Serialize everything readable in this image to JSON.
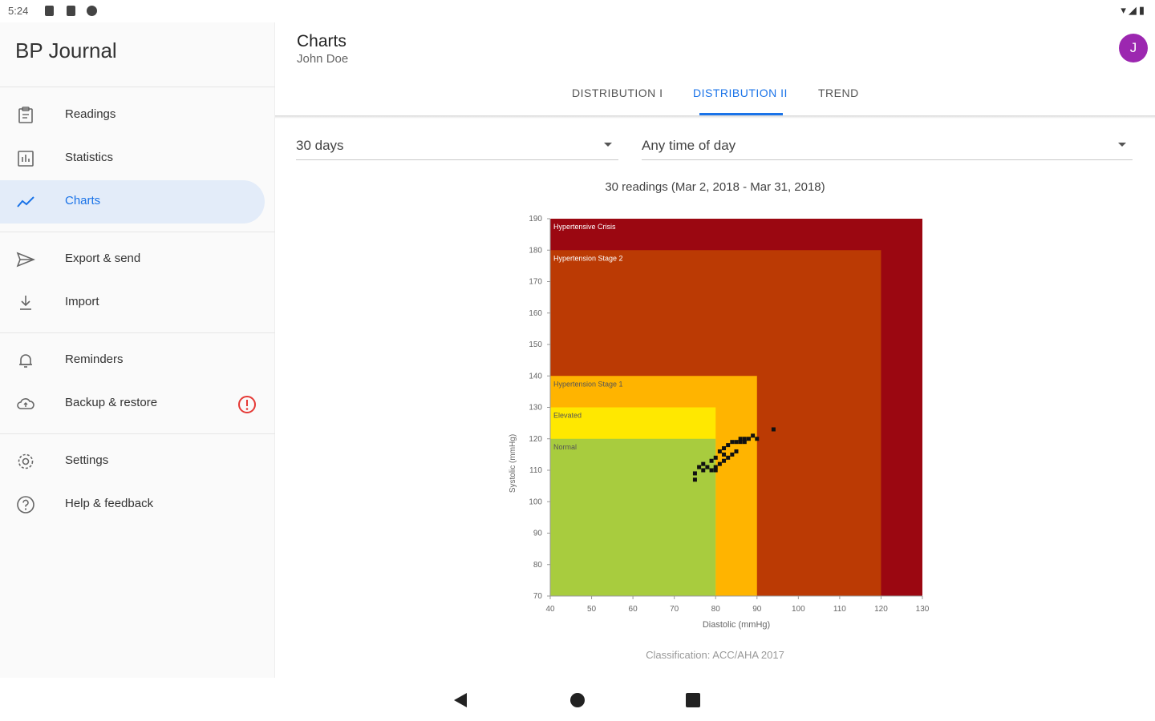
{
  "status_bar": {
    "time": "5:24"
  },
  "drawer": {
    "title": "BP Journal",
    "items": [
      {
        "label": "Readings",
        "icon": "clipboard-icon",
        "active": false
      },
      {
        "label": "Statistics",
        "icon": "stats-icon",
        "active": false
      },
      {
        "label": "Charts",
        "icon": "chart-line-icon",
        "active": true
      },
      {
        "label": "Export & send",
        "icon": "send-icon",
        "active": false
      },
      {
        "label": "Import",
        "icon": "download-icon",
        "active": false
      },
      {
        "label": "Reminders",
        "icon": "bell-icon",
        "active": false
      },
      {
        "label": "Backup & restore",
        "icon": "cloud-upload-icon",
        "active": false,
        "warning": true
      },
      {
        "label": "Settings",
        "icon": "gear-icon",
        "active": false
      },
      {
        "label": "Help & feedback",
        "icon": "help-icon",
        "active": false
      }
    ]
  },
  "header": {
    "title": "Charts",
    "subtitle": "John Doe",
    "avatar_initial": "J",
    "avatar_color": "#9c27b0"
  },
  "tabs": [
    {
      "label": "DISTRIBUTION I",
      "active": false
    },
    {
      "label": "DISTRIBUTION II",
      "active": true
    },
    {
      "label": "TREND",
      "active": false
    }
  ],
  "filters": {
    "period": "30 days",
    "time_of_day": "Any time of day"
  },
  "summary": "30 readings (Mar 2, 2018 - Mar 31, 2018)",
  "classification": "Classification: ACC/AHA 2017",
  "chart_data": {
    "type": "scatter",
    "xlabel": "Diastolic (mmHg)",
    "ylabel": "Systolic (mmHg)",
    "xlim": [
      40,
      130
    ],
    "ylim": [
      70,
      190
    ],
    "xticks": [
      40,
      50,
      60,
      70,
      80,
      90,
      100,
      110,
      120,
      130
    ],
    "yticks": [
      70,
      80,
      90,
      100,
      110,
      120,
      130,
      140,
      150,
      160,
      170,
      180,
      190
    ],
    "zones": [
      {
        "label": "Hypertensive Crisis",
        "x_max": 130,
        "y_max": 190,
        "color": "#9b0711"
      },
      {
        "label": "Hypertension Stage 2",
        "x_max": 120,
        "y_max": 180,
        "color": "#bb3a04"
      },
      {
        "label": "Hypertension Stage 1",
        "x_max": 90,
        "y_max": 140,
        "color": "#ffb400"
      },
      {
        "label": "Elevated",
        "x_max": 80,
        "y_max": 130,
        "color": "#ffe800"
      },
      {
        "label": "Normal",
        "x_max": 80,
        "y_max": 120,
        "color": "#a8cc3e"
      }
    ],
    "points": [
      [
        75,
        107
      ],
      [
        75,
        109
      ],
      [
        76,
        111
      ],
      [
        77,
        112
      ],
      [
        77,
        110
      ],
      [
        78,
        111
      ],
      [
        79,
        113
      ],
      [
        79,
        110
      ],
      [
        80,
        114
      ],
      [
        80,
        111
      ],
      [
        80,
        110
      ],
      [
        81,
        112
      ],
      [
        81,
        116
      ],
      [
        82,
        113
      ],
      [
        82,
        115
      ],
      [
        82,
        117
      ],
      [
        83,
        114
      ],
      [
        83,
        118
      ],
      [
        84,
        119
      ],
      [
        84,
        115
      ],
      [
        85,
        119
      ],
      [
        85,
        116
      ],
      [
        86,
        120
      ],
      [
        86,
        119
      ],
      [
        87,
        120
      ],
      [
        87,
        119
      ],
      [
        88,
        120
      ],
      [
        89,
        121
      ],
      [
        90,
        120
      ],
      [
        94,
        123
      ]
    ]
  }
}
